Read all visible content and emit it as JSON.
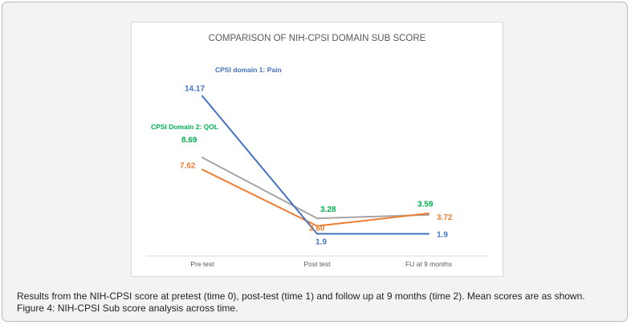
{
  "colors": {
    "pain": "#4472c4",
    "qol": "#00b050",
    "orange": "#ed7d31",
    "gray": "#a5a5a5",
    "title": "#595959",
    "axis_text": "#595959"
  },
  "caption": {
    "line1": "Results from the NIH-CPSI score at pretest (time 0), post-test (time 1) and follow up at 9 months (time 2). Mean scores are as shown.",
    "line2": "Figure 4: NIH-CPSI Sub score analysis across time."
  },
  "chart_data": {
    "type": "line",
    "title": "COMPARISON OF NIH-CPSI DOMAIN SUB SCORE",
    "xlabel": "",
    "ylabel": "",
    "categories": [
      "Pre test",
      "Post test",
      "FU at 9 months"
    ],
    "ylim": [
      0,
      16
    ],
    "grid": false,
    "legend": "none",
    "series": [
      {
        "name": "CPSI domain 1: Pain",
        "color": "#4472c4",
        "label_color": "#4472c4",
        "values": [
          14.17,
          1.9,
          1.9
        ],
        "labels": [
          "14.17",
          "1.9",
          "1.9"
        ]
      },
      {
        "name": "CPSI Domain 2: QOL",
        "color": "#a5a5a5",
        "label_color": "#00b050",
        "values": [
          8.69,
          3.28,
          3.59
        ],
        "labels": [
          "8.69",
          "3.28",
          "3.59"
        ]
      },
      {
        "name": "",
        "color": "#ed7d31",
        "label_color": "#ed7d31",
        "values": [
          7.62,
          2.6,
          3.72
        ],
        "labels": [
          "7.62",
          "2.60",
          "3.72"
        ]
      }
    ]
  }
}
